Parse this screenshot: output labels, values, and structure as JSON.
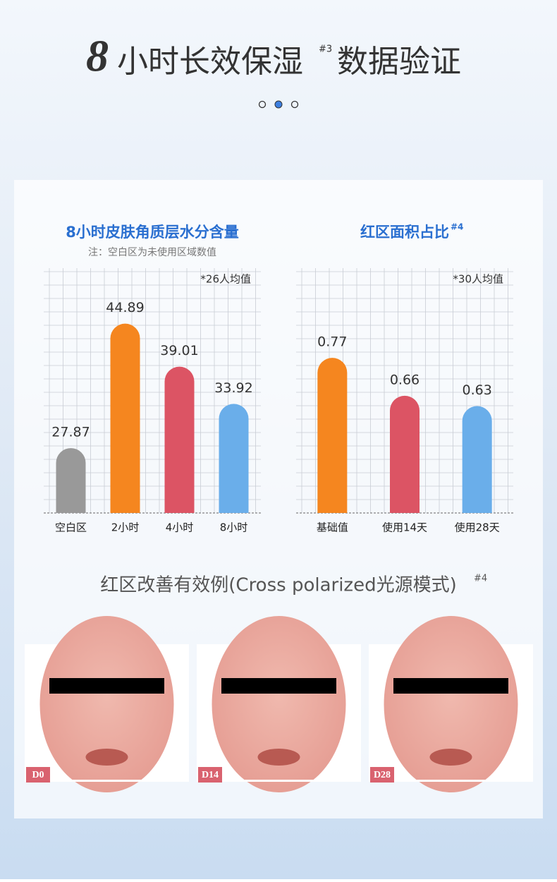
{
  "header": {
    "title_number": "8",
    "title": "小时长效保湿",
    "title_sup": "#3",
    "title_rest": "数据验证"
  },
  "chart_data": [
    {
      "type": "bar",
      "title": "8小时皮肤角质层水分含量",
      "subtitle": "注：空白区为未使用区域数值",
      "annotation": "*26人均值",
      "categories": [
        "空白区",
        "2小时",
        "4小时",
        "8小时"
      ],
      "values": [
        27.87,
        44.89,
        39.01,
        33.92
      ],
      "colors": [
        "#999999",
        "#f5861f",
        "#dc5464",
        "#6aaeea"
      ],
      "ylim": [
        19,
        52
      ]
    },
    {
      "type": "bar",
      "title": "红区面积占比",
      "title_sup": "#4",
      "annotation": "*30人均值",
      "categories": [
        "基础值",
        "使用14天",
        "使用28天"
      ],
      "values": [
        0.77,
        0.66,
        0.63
      ],
      "colors": [
        "#f5861f",
        "#dc5464",
        "#6aaeea"
      ],
      "ylim": [
        0.32,
        1.02
      ]
    }
  ],
  "section": {
    "title": "红区改善有效例(Cross polarized光源模式)",
    "title_sup": "#4"
  },
  "photos": [
    "D0",
    "D14",
    "D28"
  ]
}
